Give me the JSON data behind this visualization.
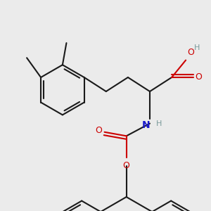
{
  "bg_color": "#ebebeb",
  "bond_color": "#1a1a1a",
  "bond_width": 1.5,
  "figsize": [
    3.0,
    3.0
  ],
  "dpi": 100,
  "colors": {
    "O": "#cc0000",
    "N": "#1a1acc",
    "C": "#1a1a1a",
    "H": "#7a9a9a"
  }
}
